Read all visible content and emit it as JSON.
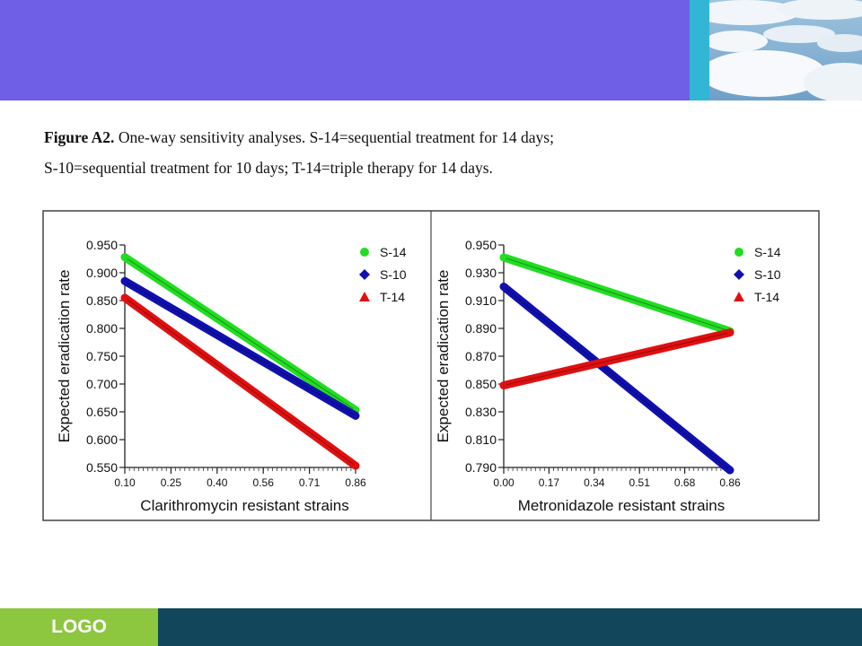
{
  "caption": {
    "label": "Figure A2.",
    "line1": " One-way sensitivity analyses. S-14=sequential treatment for 14 days;",
    "line2": "S-10=sequential treatment for 10 days; T-14=triple therapy for 14 days."
  },
  "footer": {
    "logo": "LOGO"
  },
  "colors": {
    "header": "#6F5FE6",
    "stripe": "#31B6D6",
    "footer_left": "#8DC63F",
    "footer_right": "#12465A",
    "S-14": "#22DD22",
    "S-10": "#1010B0",
    "T-14": "#E01010"
  },
  "chart_data": [
    {
      "type": "line",
      "xlabel": "Clarithromycin resistant strains",
      "ylabel": "Expected eradication rate",
      "x_ticks": [
        "0.10",
        "0.25",
        "0.40",
        "0.56",
        "0.71",
        "0.86"
      ],
      "y_ticks": [
        "0.950",
        "0.900",
        "0.850",
        "0.800",
        "0.750",
        "0.700",
        "0.650",
        "0.600",
        "0.550"
      ],
      "xlim": [
        0.1,
        0.86
      ],
      "ylim": [
        0.55,
        0.95
      ],
      "legend_position": "top-right",
      "series": [
        {
          "name": "S-14",
          "marker": "circle",
          "x": [
            0.1,
            0.86
          ],
          "values": [
            0.928,
            0.653
          ]
        },
        {
          "name": "S-10",
          "marker": "diamond",
          "x": [
            0.1,
            0.86
          ],
          "values": [
            0.885,
            0.643
          ]
        },
        {
          "name": "T-14",
          "marker": "triangle",
          "x": [
            0.1,
            0.86
          ],
          "values": [
            0.855,
            0.553
          ]
        }
      ]
    },
    {
      "type": "line",
      "xlabel": "Metronidazole resistant strains",
      "ylabel": "Expected eradication rate",
      "x_ticks": [
        "0.00",
        "0.17",
        "0.34",
        "0.51",
        "0.68",
        "0.86"
      ],
      "y_ticks": [
        "0.950",
        "0.930",
        "0.910",
        "0.890",
        "0.870",
        "0.850",
        "0.830",
        "0.810",
        "0.790"
      ],
      "xlim": [
        0.0,
        0.86
      ],
      "ylim": [
        0.79,
        0.95
      ],
      "legend_position": "top-right",
      "series": [
        {
          "name": "S-14",
          "marker": "circle",
          "x": [
            0.0,
            0.86
          ],
          "values": [
            0.941,
            0.888
          ]
        },
        {
          "name": "S-10",
          "marker": "diamond",
          "x": [
            0.0,
            0.86
          ],
          "values": [
            0.92,
            0.788
          ]
        },
        {
          "name": "T-14",
          "marker": "triangle",
          "x": [
            0.0,
            0.86
          ],
          "values": [
            0.849,
            0.887
          ]
        }
      ]
    }
  ]
}
